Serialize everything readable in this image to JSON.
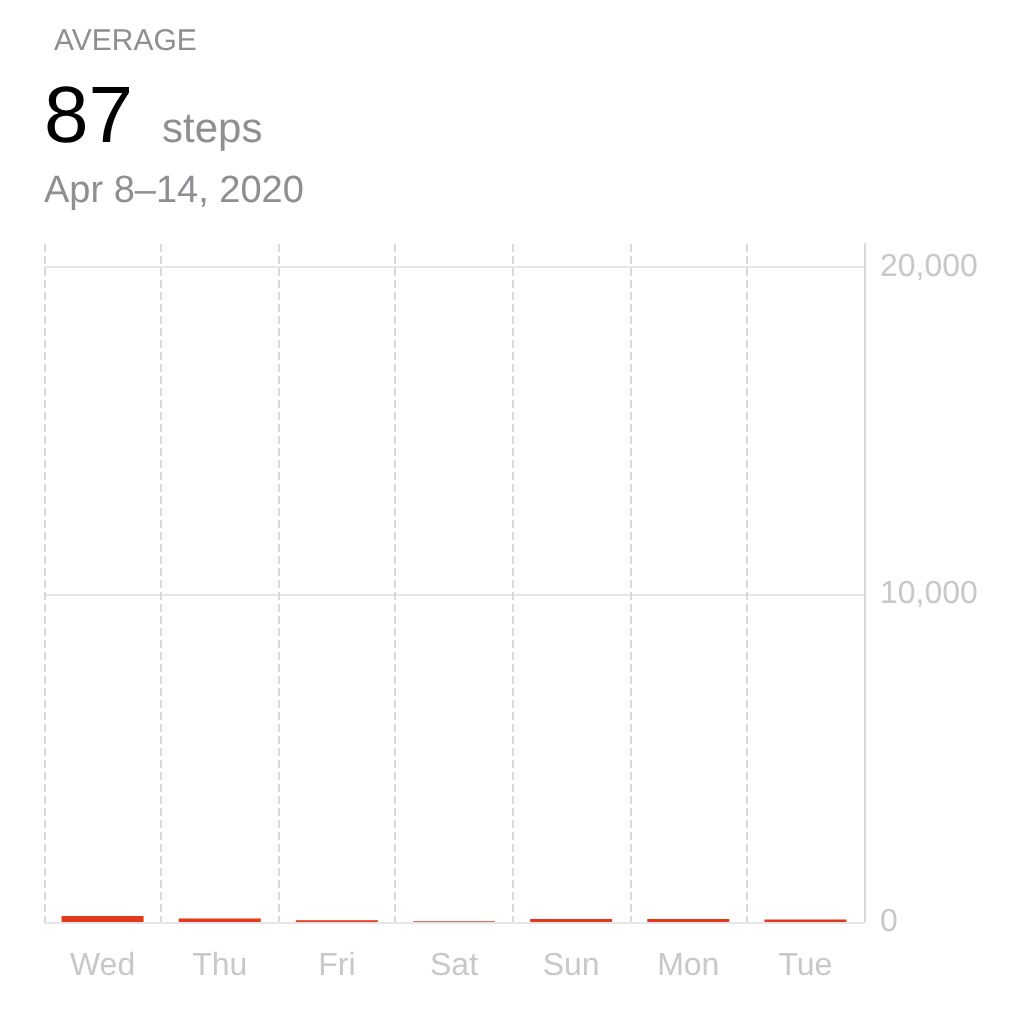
{
  "chart_data": {
    "type": "bar",
    "title": "AVERAGE",
    "annotations": [
      "87",
      "steps",
      "Apr 8–14, 2020"
    ],
    "categories": [
      "Wed",
      "Thu",
      "Fri",
      "Sat",
      "Sun",
      "Mon",
      "Tue"
    ],
    "values": [
      180,
      110,
      50,
      20,
      90,
      90,
      80
    ],
    "color": "#e2391c",
    "ylim": [
      0,
      20700
    ],
    "yticks": [
      0,
      {
        "value": 10000,
        "label": "10,000"
      },
      {
        "value": 20000,
        "label": "20,000"
      }
    ],
    "grid": true
  }
}
